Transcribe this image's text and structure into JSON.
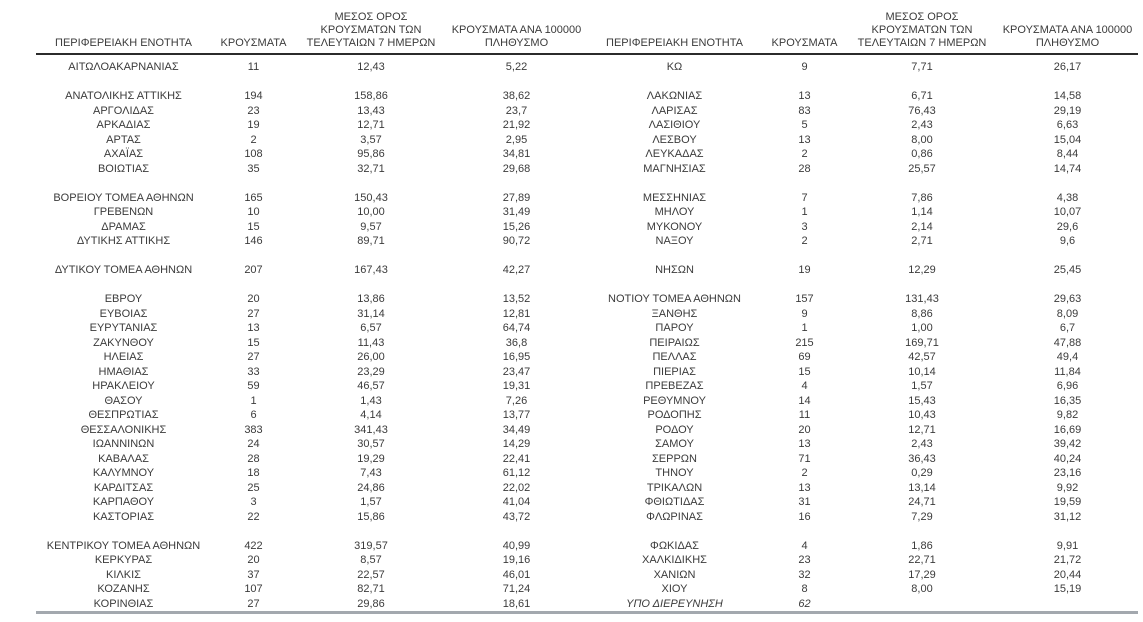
{
  "colors": {
    "text": "#3b3b3b",
    "header_rule": "#2b2b2b",
    "bottom_rule": "#a3a8ae",
    "background": "#ffffff"
  },
  "column_headers": [
    {
      "id": "region",
      "lines": [
        "ΠΕΡΙΦΕΡΕΙΑΚΗ ΕΝΟΤΗΤΑ"
      ]
    },
    {
      "id": "cases",
      "lines": [
        "ΚΡΟΥΣΜΑΤΑ"
      ]
    },
    {
      "id": "avg7",
      "lines": [
        "ΜΕΣΟΣ ΟΡΟΣ",
        "ΚΡΟΥΣΜΑΤΩΝ ΤΩΝ",
        "ΤΕΛΕΥΤΑΙΩΝ 7 ΗΜΕΡΩΝ"
      ]
    },
    {
      "id": "per100k",
      "lines": [
        "ΚΡΟΥΣΜΑΤΑ ΑΝΑ 100000",
        "ΠΛΗΘΥΣΜΟ"
      ]
    }
  ],
  "tables": [
    {
      "name": "left",
      "groups": [
        [
          {
            "c": [
              "ΑΙΤΩΛΟΑΚΑΡΝΑΝΙΑΣ",
              "11",
              "12,43",
              "5,22"
            ]
          }
        ],
        [
          {
            "c": [
              "ΑΝΑΤΟΛΙΚΗΣ ΑΤΤΙΚΗΣ",
              "194",
              "158,86",
              "38,62"
            ]
          },
          {
            "c": [
              "ΑΡΓΟΛΙΔΑΣ",
              "23",
              "13,43",
              "23,7"
            ]
          },
          {
            "c": [
              "ΑΡΚΑΔΙΑΣ",
              "19",
              "12,71",
              "21,92"
            ]
          },
          {
            "c": [
              "ΑΡΤΑΣ",
              "2",
              "3,57",
              "2,95"
            ]
          },
          {
            "c": [
              "ΑΧΑΪΑΣ",
              "108",
              "95,86",
              "34,81"
            ]
          },
          {
            "c": [
              "ΒΟΙΩΤΙΑΣ",
              "35",
              "32,71",
              "29,68"
            ]
          }
        ],
        [
          {
            "c": [
              "ΒΟΡΕΙΟΥ ΤΟΜΕΑ ΑΘΗΝΩΝ",
              "165",
              "150,43",
              "27,89"
            ]
          },
          {
            "c": [
              "ΓΡΕΒΕΝΩΝ",
              "10",
              "10,00",
              "31,49"
            ]
          },
          {
            "c": [
              "ΔΡΑΜΑΣ",
              "15",
              "9,57",
              "15,26"
            ]
          },
          {
            "c": [
              "ΔΥΤΙΚΗΣ ΑΤΤΙΚΗΣ",
              "146",
              "89,71",
              "90,72"
            ]
          }
        ],
        [
          {
            "c": [
              "ΔΥΤΙΚΟΥ ΤΟΜΕΑ ΑΘΗΝΩΝ",
              "207",
              "167,43",
              "42,27"
            ]
          }
        ],
        [
          {
            "c": [
              "ΕΒΡΟΥ",
              "20",
              "13,86",
              "13,52"
            ]
          },
          {
            "c": [
              "ΕΥΒΟΙΑΣ",
              "27",
              "31,14",
              "12,81"
            ]
          },
          {
            "c": [
              "ΕΥΡΥΤΑΝΙΑΣ",
              "13",
              "6,57",
              "64,74"
            ]
          },
          {
            "c": [
              "ΖΑΚΥΝΘΟΥ",
              "15",
              "11,43",
              "36,8"
            ]
          },
          {
            "c": [
              "ΗΛΕΙΑΣ",
              "27",
              "26,00",
              "16,95"
            ]
          },
          {
            "c": [
              "ΗΜΑΘΙΑΣ",
              "33",
              "23,29",
              "23,47"
            ]
          },
          {
            "c": [
              "ΗΡΑΚΛΕΙΟΥ",
              "59",
              "46,57",
              "19,31"
            ]
          },
          {
            "c": [
              "ΘΑΣΟΥ",
              "1",
              "1,43",
              "7,26"
            ]
          },
          {
            "c": [
              "ΘΕΣΠΡΩΤΙΑΣ",
              "6",
              "4,14",
              "13,77"
            ]
          },
          {
            "c": [
              "ΘΕΣΣΑΛΟΝΙΚΗΣ",
              "383",
              "341,43",
              "34,49"
            ]
          },
          {
            "c": [
              "ΙΩΑΝΝΙΝΩΝ",
              "24",
              "30,57",
              "14,29"
            ]
          },
          {
            "c": [
              "ΚΑΒΑΛΑΣ",
              "28",
              "19,29",
              "22,41"
            ]
          },
          {
            "c": [
              "ΚΑΛΥΜΝΟΥ",
              "18",
              "7,43",
              "61,12"
            ]
          },
          {
            "c": [
              "ΚΑΡΔΙΤΣΑΣ",
              "25",
              "24,86",
              "22,02"
            ]
          },
          {
            "c": [
              "ΚΑΡΠΑΘΟΥ",
              "3",
              "1,57",
              "41,04"
            ]
          },
          {
            "c": [
              "ΚΑΣΤΟΡΙΑΣ",
              "22",
              "15,86",
              "43,72"
            ]
          }
        ],
        [
          {
            "c": [
              "ΚΕΝΤΡΙΚΟΥ ΤΟΜΕΑ ΑΘΗΝΩΝ",
              "422",
              "319,57",
              "40,99"
            ]
          },
          {
            "c": [
              "ΚΕΡΚΥΡΑΣ",
              "20",
              "8,57",
              "19,16"
            ]
          },
          {
            "c": [
              "ΚΙΛΚΙΣ",
              "37",
              "22,57",
              "46,01"
            ]
          },
          {
            "c": [
              "ΚΟΖΑΝΗΣ",
              "107",
              "82,71",
              "71,24"
            ]
          },
          {
            "c": [
              "ΚΟΡΙΝΘΙΑΣ",
              "27",
              "29,86",
              "18,61"
            ]
          }
        ]
      ]
    },
    {
      "name": "right",
      "groups": [
        [
          {
            "c": [
              "ΚΩ",
              "9",
              "7,71",
              "26,17"
            ]
          }
        ],
        [
          {
            "c": [
              "ΛΑΚΩΝΙΑΣ",
              "13",
              "6,71",
              "14,58"
            ]
          },
          {
            "c": [
              "ΛΑΡΙΣΑΣ",
              "83",
              "76,43",
              "29,19"
            ]
          },
          {
            "c": [
              "ΛΑΣΙΘΙΟΥ",
              "5",
              "2,43",
              "6,63"
            ]
          },
          {
            "c": [
              "ΛΕΣΒΟΥ",
              "13",
              "8,00",
              "15,04"
            ]
          },
          {
            "c": [
              "ΛΕΥΚΑΔΑΣ",
              "2",
              "0,86",
              "8,44"
            ]
          },
          {
            "c": [
              "ΜΑΓΝΗΣΙΑΣ",
              "28",
              "25,57",
              "14,74"
            ]
          }
        ],
        [
          {
            "c": [
              "ΜΕΣΣΗΝΙΑΣ",
              "7",
              "7,86",
              "4,38"
            ]
          },
          {
            "c": [
              "ΜΗΛΟΥ",
              "1",
              "1,14",
              "10,07"
            ]
          },
          {
            "c": [
              "ΜΥΚΟΝΟΥ",
              "3",
              "2,14",
              "29,6"
            ]
          },
          {
            "c": [
              "ΝΑΞΟΥ",
              "2",
              "2,71",
              "9,6"
            ]
          }
        ],
        [
          {
            "c": [
              "ΝΗΣΩΝ",
              "19",
              "12,29",
              "25,45"
            ]
          }
        ],
        [
          {
            "c": [
              "ΝΟΤΙΟΥ ΤΟΜΕΑ ΑΘΗΝΩΝ",
              "157",
              "131,43",
              "29,63"
            ]
          },
          {
            "c": [
              "ΞΑΝΘΗΣ",
              "9",
              "8,86",
              "8,09"
            ]
          },
          {
            "c": [
              "ΠΑΡΟΥ",
              "1",
              "1,00",
              "6,7"
            ]
          },
          {
            "c": [
              "ΠΕΙΡΑΙΩΣ",
              "215",
              "169,71",
              "47,88"
            ]
          },
          {
            "c": [
              "ΠΕΛΛΑΣ",
              "69",
              "42,57",
              "49,4"
            ]
          },
          {
            "c": [
              "ΠΙΕΡΙΑΣ",
              "15",
              "10,14",
              "11,84"
            ]
          },
          {
            "c": [
              "ΠΡΕΒΕΖΑΣ",
              "4",
              "1,57",
              "6,96"
            ]
          },
          {
            "c": [
              "ΡΕΘΥΜΝΟΥ",
              "14",
              "15,43",
              "16,35"
            ]
          },
          {
            "c": [
              "ΡΟΔΟΠΗΣ",
              "11",
              "10,43",
              "9,82"
            ]
          },
          {
            "c": [
              "ΡΟΔΟΥ",
              "20",
              "12,71",
              "16,69"
            ]
          },
          {
            "c": [
              "ΣΑΜΟΥ",
              "13",
              "2,43",
              "39,42"
            ]
          },
          {
            "c": [
              "ΣΕΡΡΩΝ",
              "71",
              "36,43",
              "40,24"
            ]
          },
          {
            "c": [
              "ΤΗΝΟΥ",
              "2",
              "0,29",
              "23,16"
            ]
          },
          {
            "c": [
              "ΤΡΙΚΑΛΩΝ",
              "13",
              "13,14",
              "9,92"
            ]
          },
          {
            "c": [
              "ΦΘΙΩΤΙΔΑΣ",
              "31",
              "24,71",
              "19,59"
            ]
          },
          {
            "c": [
              "ΦΛΩΡΙΝΑΣ",
              "16",
              "7,29",
              "31,12"
            ]
          }
        ],
        [
          {
            "c": [
              "ΦΩΚΙΔΑΣ",
              "4",
              "1,86",
              "9,91"
            ]
          },
          {
            "c": [
              "ΧΑΛΚΙΔΙΚΗΣ",
              "23",
              "22,71",
              "21,72"
            ]
          },
          {
            "c": [
              "ΧΑΝΙΩΝ",
              "32",
              "17,29",
              "20,44"
            ]
          },
          {
            "c": [
              "ΧΙΟΥ",
              "8",
              "8,00",
              "15,19"
            ]
          },
          {
            "c": [
              "ΥΠΟ ΔΙΕΡΕΥΝΗΣΗ",
              "62",
              "",
              ""
            ],
            "italic": true
          }
        ]
      ]
    }
  ]
}
